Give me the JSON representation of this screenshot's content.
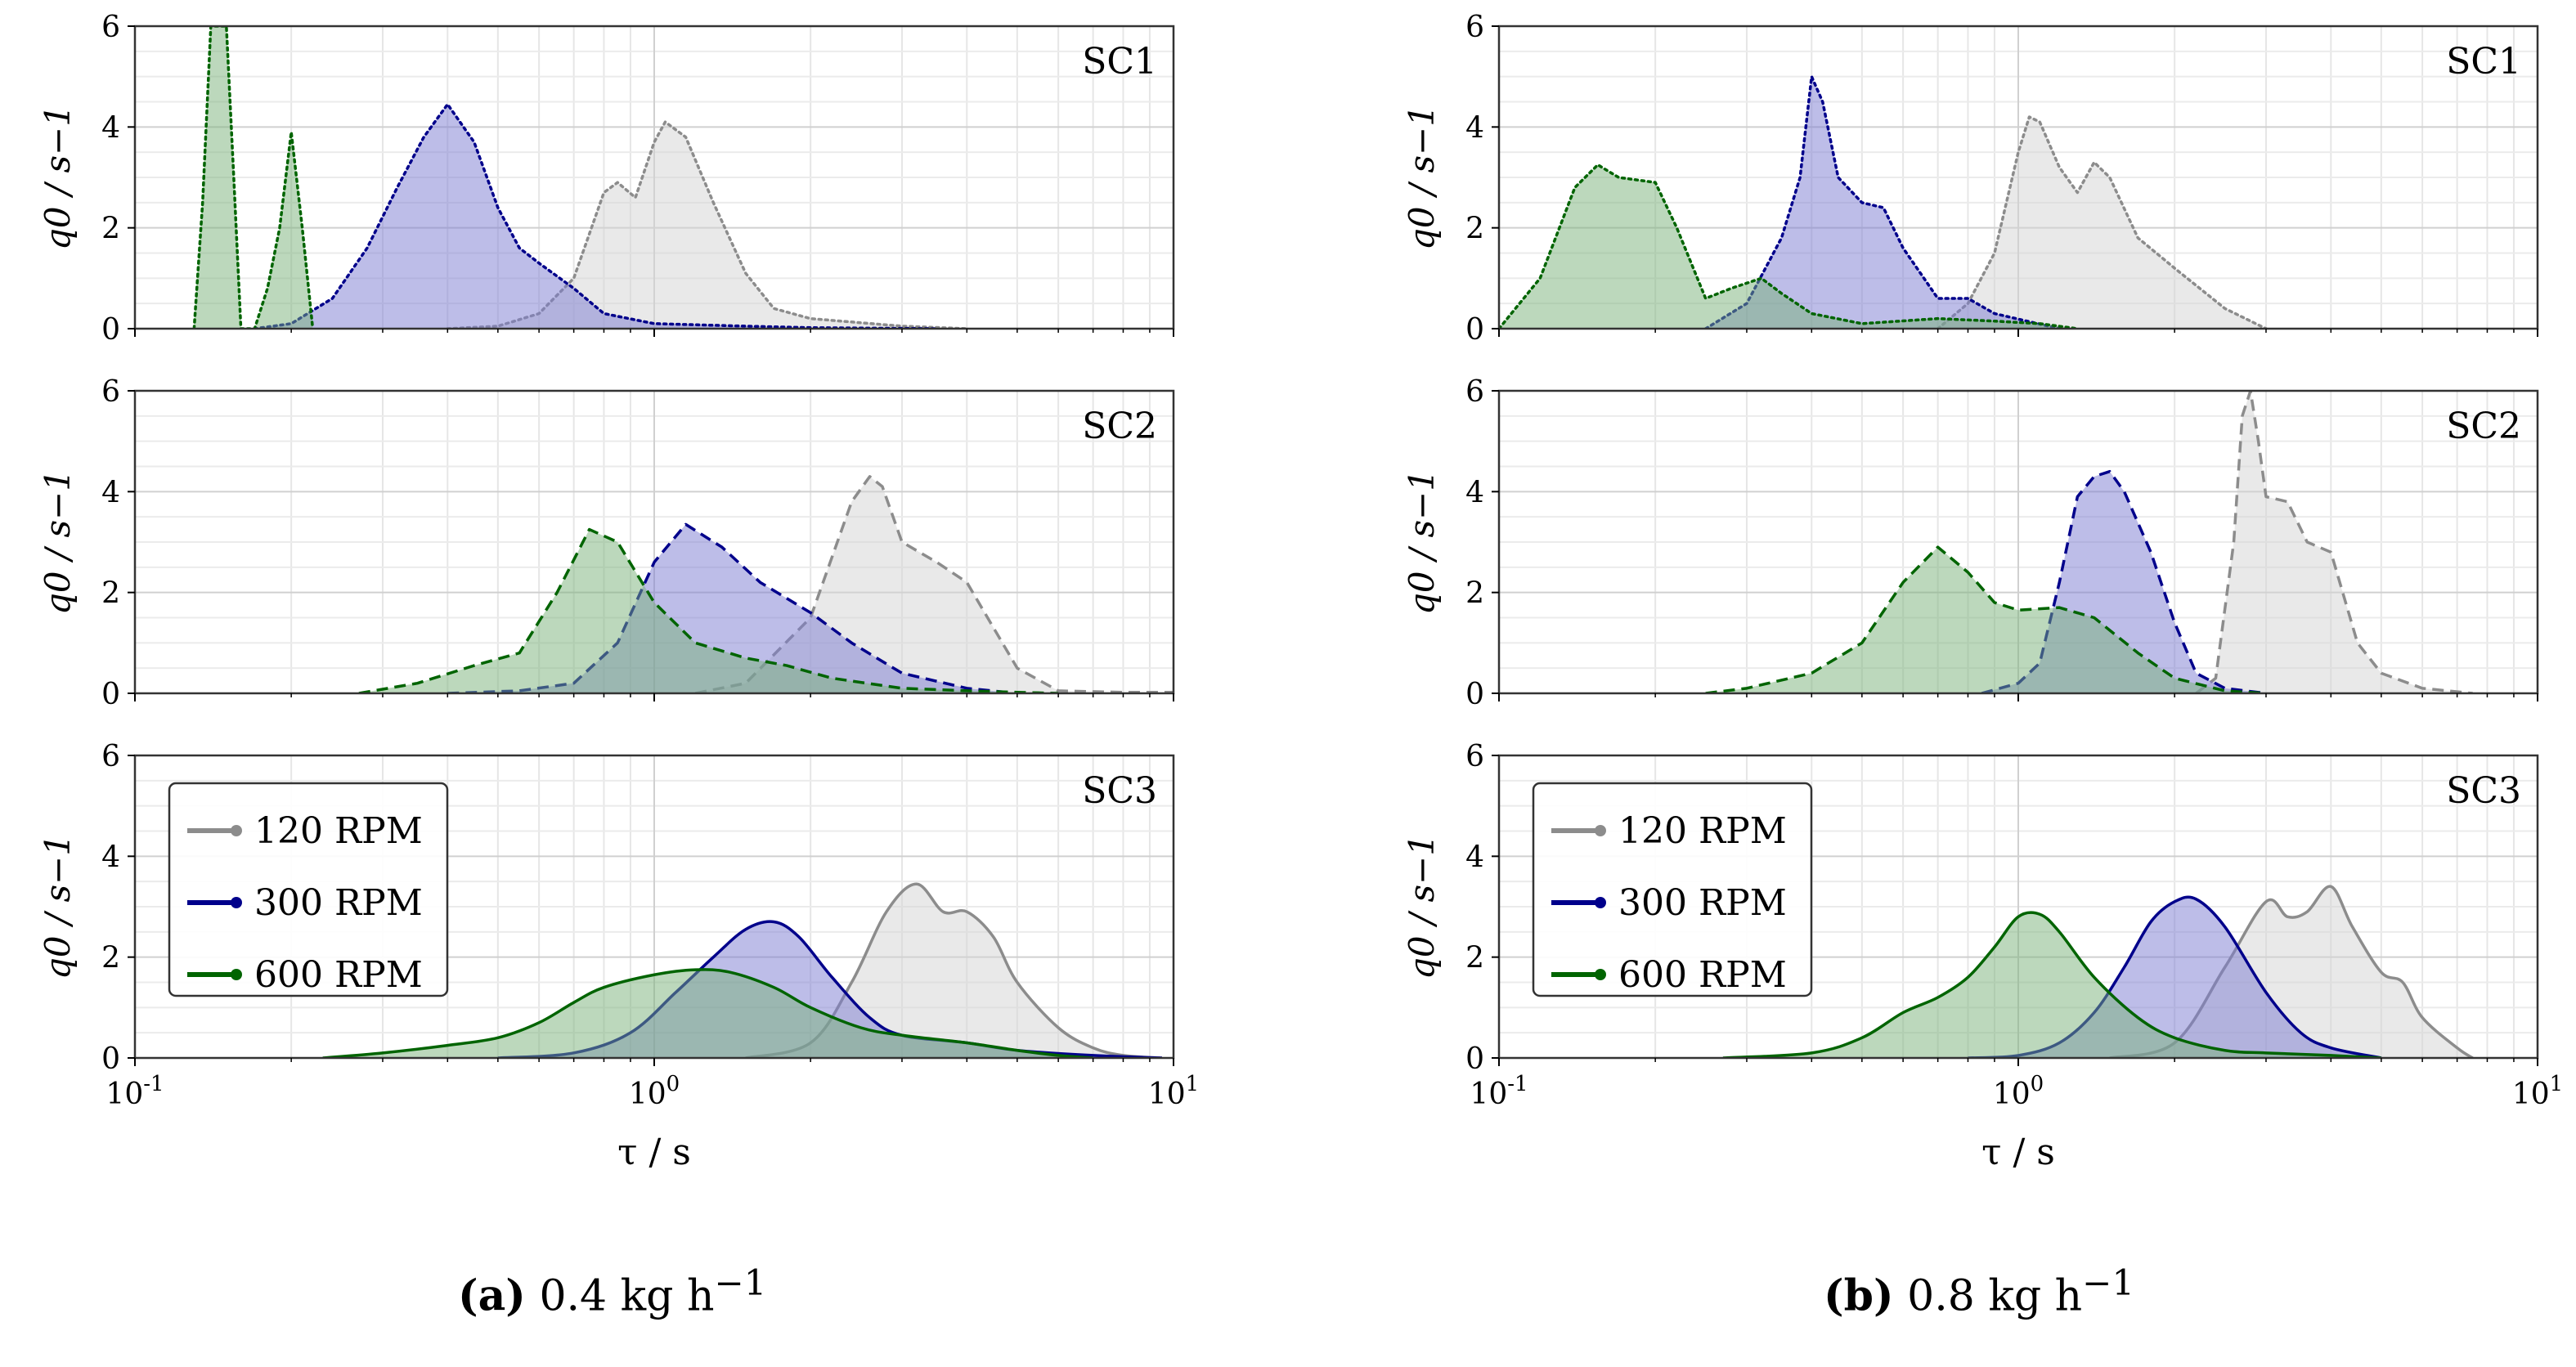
{
  "colors": {
    "120 RPM": "#8c8c8c",
    "300 RPM": "#00008b",
    "600 RPM": "#006400"
  },
  "fills": {
    "120 RPM": "#d3d3d3",
    "300 RPM": "#7b7bd2",
    "600 RPM": "#7ab27a"
  },
  "captions": [
    {
      "letter": "(a)",
      "text": "0.4 kg h",
      "exp": "−1"
    },
    {
      "letter": "(b)",
      "text": "0.8 kg h",
      "exp": "−1"
    }
  ],
  "chart_data": [
    {
      "type": "area",
      "title": "SC1",
      "xscale": "log",
      "xlim": [
        0.1,
        10
      ],
      "ylim": [
        0,
        6
      ],
      "xlabel": "",
      "ylabel": "q0 / s−1",
      "grid": true,
      "yticks": [
        "0",
        "2",
        "4",
        "6"
      ],
      "linestyle": "dotted",
      "series": [
        {
          "name": "600 RPM",
          "x": [
            0.13,
            0.135,
            0.14,
            0.145,
            0.15,
            0.155,
            0.16,
            0.17,
            0.18,
            0.19,
            0.2,
            0.21,
            0.22
          ],
          "y": [
            0,
            2.5,
            6.0,
            6.0,
            6.0,
            3.0,
            0,
            0,
            0.8,
            2.0,
            3.9,
            2.0,
            0
          ]
        },
        {
          "name": "300 RPM",
          "x": [
            0.17,
            0.2,
            0.24,
            0.28,
            0.32,
            0.36,
            0.4,
            0.45,
            0.5,
            0.55,
            0.6,
            0.7,
            0.8,
            1.0,
            1.5,
            2.0,
            3.5
          ],
          "y": [
            0,
            0.1,
            0.6,
            1.6,
            2.8,
            3.8,
            4.45,
            3.7,
            2.4,
            1.6,
            1.3,
            0.8,
            0.3,
            0.1,
            0.05,
            0.02,
            0
          ]
        },
        {
          "name": "120 RPM",
          "x": [
            0.4,
            0.5,
            0.6,
            0.7,
            0.8,
            0.85,
            0.92,
            1.0,
            1.05,
            1.15,
            1.3,
            1.5,
            1.7,
            2.0,
            3.0,
            4.0
          ],
          "y": [
            0,
            0.05,
            0.3,
            1.0,
            2.7,
            2.9,
            2.6,
            3.7,
            4.1,
            3.8,
            2.5,
            1.1,
            0.4,
            0.2,
            0.05,
            0
          ]
        }
      ]
    },
    {
      "type": "area",
      "title": "SC2",
      "xscale": "log",
      "xlim": [
        0.1,
        10
      ],
      "ylim": [
        0,
        6
      ],
      "xlabel": "",
      "ylabel": "q0 / s−1",
      "grid": true,
      "yticks": [
        "0",
        "2",
        "4",
        "6"
      ],
      "linestyle": "dashed",
      "series": [
        {
          "name": "600 RPM",
          "x": [
            0.27,
            0.35,
            0.45,
            0.55,
            0.65,
            0.75,
            0.85,
            1.0,
            1.2,
            1.5,
            1.8,
            2.2,
            3.0,
            4.0,
            5.0,
            6.0
          ],
          "y": [
            0,
            0.2,
            0.55,
            0.8,
            2.0,
            3.25,
            3.0,
            1.8,
            1.0,
            0.7,
            0.55,
            0.3,
            0.1,
            0.05,
            0.02,
            0
          ]
        },
        {
          "name": "300 RPM",
          "x": [
            0.4,
            0.55,
            0.7,
            0.85,
            1.0,
            1.15,
            1.35,
            1.6,
            2.0,
            2.4,
            3.0,
            4.0,
            5.0
          ],
          "y": [
            0,
            0.05,
            0.2,
            1.0,
            2.6,
            3.35,
            2.9,
            2.2,
            1.6,
            1.0,
            0.4,
            0.1,
            0
          ]
        },
        {
          "name": "120 RPM",
          "x": [
            1.2,
            1.5,
            2.0,
            2.4,
            2.6,
            2.75,
            3.0,
            3.5,
            4.0,
            5.0,
            6.0,
            8.0,
            10.0
          ],
          "y": [
            0,
            0.2,
            1.5,
            3.8,
            4.3,
            4.1,
            3.0,
            2.6,
            2.2,
            0.5,
            0.05,
            0.02,
            0.02
          ]
        }
      ]
    },
    {
      "type": "area",
      "title": "SC3",
      "xscale": "log",
      "xlim": [
        0.1,
        10
      ],
      "ylim": [
        0,
        6
      ],
      "xlabel": "τ / s",
      "ylabel": "q0 / s−1",
      "grid": true,
      "yticks": [
        "0",
        "2",
        "4",
        "6"
      ],
      "linestyle": "solid",
      "legend": {
        "loc": "upper left",
        "entries": [
          "120 RPM",
          "300 RPM",
          "600 RPM"
        ]
      },
      "series": [
        {
          "name": "600 RPM",
          "x": [
            0.23,
            0.3,
            0.4,
            0.5,
            0.6,
            0.7,
            0.8,
            1.0,
            1.2,
            1.4,
            1.7,
            2.0,
            2.5,
            3.0,
            4.0,
            5.0,
            6.0,
            7.0
          ],
          "y": [
            0,
            0.1,
            0.25,
            0.4,
            0.7,
            1.1,
            1.4,
            1.65,
            1.75,
            1.7,
            1.4,
            1.0,
            0.6,
            0.45,
            0.3,
            0.15,
            0.05,
            0
          ]
        },
        {
          "name": "300 RPM",
          "x": [
            0.5,
            0.7,
            0.9,
            1.1,
            1.3,
            1.5,
            1.7,
            1.9,
            2.2,
            2.6,
            3.0,
            4.0,
            5.0,
            7.0,
            9.5
          ],
          "y": [
            0,
            0.1,
            0.5,
            1.3,
            2.0,
            2.55,
            2.7,
            2.4,
            1.6,
            0.8,
            0.45,
            0.3,
            0.15,
            0.05,
            0
          ]
        },
        {
          "name": "120 RPM",
          "x": [
            1.5,
            2.0,
            2.4,
            2.8,
            3.2,
            3.6,
            4.0,
            4.5,
            5.0,
            6.0,
            7.0,
            8.0,
            9.5
          ],
          "y": [
            0,
            0.3,
            1.5,
            2.9,
            3.45,
            2.9,
            2.9,
            2.4,
            1.5,
            0.6,
            0.2,
            0.05,
            0
          ]
        }
      ]
    },
    {
      "type": "area",
      "title": "SC1",
      "xscale": "log",
      "xlim": [
        0.1,
        10
      ],
      "ylim": [
        0,
        6
      ],
      "xlabel": "",
      "ylabel": "q0 / s−1",
      "grid": true,
      "yticks": [
        "0",
        "2",
        "4",
        "6"
      ],
      "linestyle": "dotted",
      "series": [
        {
          "name": "600 RPM",
          "x": [
            0.1,
            0.12,
            0.14,
            0.155,
            0.17,
            0.2,
            0.22,
            0.25,
            0.28,
            0.32,
            0.35,
            0.4,
            0.5,
            0.7,
            0.9,
            1.1,
            1.3
          ],
          "y": [
            0,
            1.0,
            2.8,
            3.25,
            3.0,
            2.9,
            2.0,
            0.6,
            0.8,
            1.0,
            0.7,
            0.3,
            0.1,
            0.2,
            0.15,
            0.1,
            0
          ]
        },
        {
          "name": "300 RPM",
          "x": [
            0.25,
            0.3,
            0.35,
            0.38,
            0.4,
            0.42,
            0.45,
            0.5,
            0.55,
            0.6,
            0.7,
            0.8,
            0.9,
            1.2
          ],
          "y": [
            0,
            0.5,
            1.8,
            3.0,
            5.0,
            4.5,
            3.0,
            2.5,
            2.4,
            1.6,
            0.6,
            0.6,
            0.3,
            0
          ]
        },
        {
          "name": "120 RPM",
          "x": [
            0.7,
            0.8,
            0.9,
            1.0,
            1.05,
            1.1,
            1.2,
            1.3,
            1.4,
            1.5,
            1.7,
            2.0,
            2.5,
            3.0
          ],
          "y": [
            0,
            0.5,
            1.5,
            3.5,
            4.2,
            4.1,
            3.2,
            2.7,
            3.3,
            3.0,
            1.8,
            1.2,
            0.4,
            0
          ]
        }
      ]
    },
    {
      "type": "area",
      "title": "SC2",
      "xscale": "log",
      "xlim": [
        0.1,
        10
      ],
      "ylim": [
        0,
        6
      ],
      "xlabel": "",
      "ylabel": "q0 / s−1",
      "grid": true,
      "yticks": [
        "0",
        "2",
        "4",
        "6"
      ],
      "linestyle": "dashed",
      "series": [
        {
          "name": "600 RPM",
          "x": [
            0.25,
            0.3,
            0.4,
            0.5,
            0.6,
            0.7,
            0.8,
            0.9,
            1.0,
            1.2,
            1.4,
            1.7,
            2.0,
            2.5,
            3.0
          ],
          "y": [
            0,
            0.1,
            0.4,
            1.0,
            2.2,
            2.9,
            2.4,
            1.8,
            1.65,
            1.7,
            1.5,
            0.8,
            0.3,
            0.05,
            0
          ]
        },
        {
          "name": "300 RPM",
          "x": [
            0.85,
            1.0,
            1.1,
            1.2,
            1.3,
            1.4,
            1.5,
            1.6,
            1.8,
            2.0,
            2.2,
            2.5,
            3.0
          ],
          "y": [
            0,
            0.2,
            0.6,
            2.2,
            3.9,
            4.3,
            4.4,
            4.0,
            2.8,
            1.4,
            0.4,
            0.1,
            0
          ]
        },
        {
          "name": "120 RPM",
          "x": [
            2.2,
            2.4,
            2.6,
            2.7,
            2.8,
            2.9,
            3.0,
            3.3,
            3.6,
            4.0,
            4.5,
            5.0,
            6.0,
            7.5
          ],
          "y": [
            0,
            0.3,
            3.0,
            5.5,
            6.0,
            5.0,
            3.9,
            3.8,
            3.0,
            2.8,
            1.0,
            0.4,
            0.1,
            0
          ]
        }
      ]
    },
    {
      "type": "area",
      "title": "SC3",
      "xscale": "log",
      "xlim": [
        0.1,
        10
      ],
      "ylim": [
        0,
        6
      ],
      "xlabel": "τ / s",
      "ylabel": "q0 / s−1",
      "grid": true,
      "yticks": [
        "0",
        "2",
        "4",
        "6"
      ],
      "linestyle": "solid",
      "legend": {
        "loc": "upper left",
        "entries": [
          "120 RPM",
          "300 RPM",
          "600 RPM"
        ]
      },
      "series": [
        {
          "name": "600 RPM",
          "x": [
            0.27,
            0.4,
            0.5,
            0.6,
            0.7,
            0.8,
            0.9,
            1.0,
            1.1,
            1.2,
            1.4,
            1.7,
            2.0,
            2.5,
            3.0,
            4.0,
            5.0
          ],
          "y": [
            0,
            0.1,
            0.4,
            0.9,
            1.2,
            1.6,
            2.2,
            2.8,
            2.85,
            2.5,
            1.6,
            0.8,
            0.4,
            0.15,
            0.1,
            0.05,
            0
          ]
        },
        {
          "name": "300 RPM",
          "x": [
            0.8,
            1.0,
            1.2,
            1.4,
            1.6,
            1.8,
            2.0,
            2.2,
            2.5,
            3.0,
            3.5,
            4.0,
            5.0
          ],
          "y": [
            0,
            0.05,
            0.3,
            0.9,
            1.8,
            2.7,
            3.1,
            3.15,
            2.6,
            1.3,
            0.5,
            0.2,
            0
          ]
        },
        {
          "name": "120 RPM",
          "x": [
            1.5,
            2.0,
            2.5,
            3.0,
            3.3,
            3.6,
            4.0,
            4.4,
            5.0,
            5.5,
            6.0,
            7.0,
            7.5
          ],
          "y": [
            0,
            0.3,
            1.8,
            3.1,
            2.8,
            2.9,
            3.4,
            2.6,
            1.7,
            1.5,
            0.8,
            0.2,
            0
          ]
        }
      ]
    }
  ]
}
